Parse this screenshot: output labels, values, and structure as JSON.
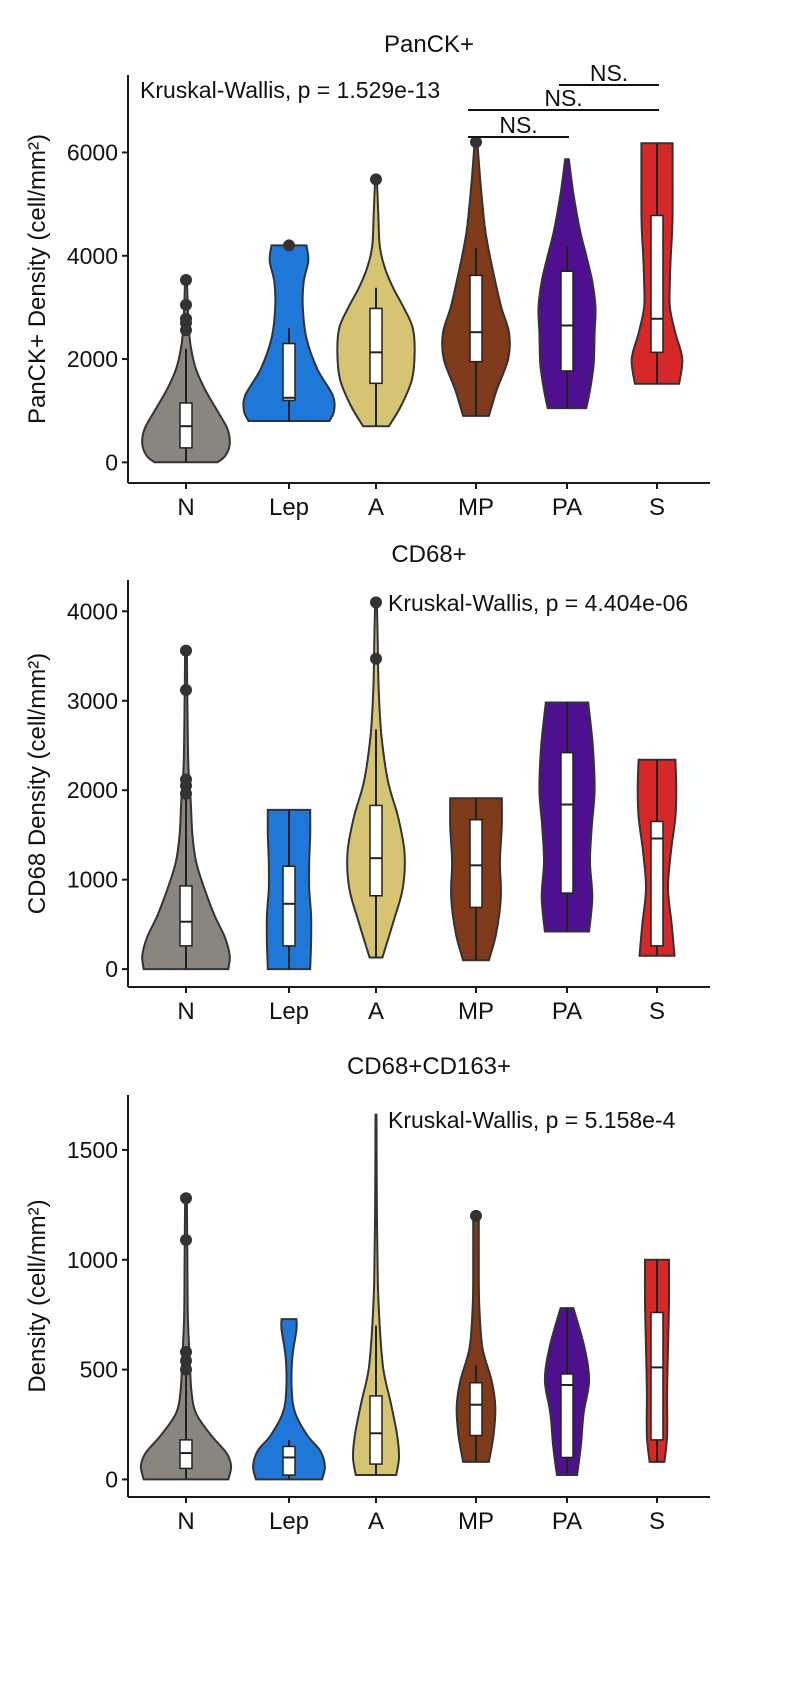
{
  "chart_data": [
    {
      "type": "violin",
      "title": "PanCK+",
      "ylabel": "PanCK+ Density (cell/mm²)",
      "ylim": [
        -400,
        7500
      ],
      "yticks": [
        0,
        2000,
        4000,
        6000
      ],
      "annotation": "Kruskal-Wallis, p = 1.529e-13",
      "annotation_position": "top-left",
      "categories": [
        "N",
        "Lep",
        "A",
        "MP",
        "PA",
        "S"
      ],
      "colors": [
        "#8b8580",
        "#1f78d8",
        "#d4c474",
        "#7f3a1a",
        "#4f1090",
        "#d62828"
      ],
      "series": [
        {
          "category": "N",
          "min": 0,
          "max": 3550,
          "q1": 280,
          "median": 700,
          "q3": 1150,
          "whisker_low": 0,
          "whisker_high": 2200,
          "outliers": [
            2560,
            2700,
            2780,
            3050,
            3530
          ],
          "profile": [
            [
              0,
              0.68
            ],
            [
              120,
              0.85
            ],
            [
              350,
              0.95
            ],
            [
              650,
              0.9
            ],
            [
              1000,
              0.68
            ],
            [
              1400,
              0.42
            ],
            [
              1800,
              0.22
            ],
            [
              2200,
              0.11
            ],
            [
              2600,
              0.06
            ],
            [
              3000,
              0.04
            ],
            [
              3550,
              0.02
            ]
          ]
        },
        {
          "category": "Lep",
          "min": 800,
          "max": 4200,
          "q1": 1200,
          "median": 1250,
          "q3": 2300,
          "whisker_low": 800,
          "whisker_high": 2600,
          "outliers": [
            4200
          ],
          "profile": [
            [
              800,
              0.88
            ],
            [
              1000,
              0.98
            ],
            [
              1300,
              0.95
            ],
            [
              1800,
              0.62
            ],
            [
              2400,
              0.38
            ],
            [
              3000,
              0.3
            ],
            [
              3500,
              0.32
            ],
            [
              3900,
              0.42
            ],
            [
              4200,
              0.38
            ]
          ]
        },
        {
          "category": "A",
          "min": 700,
          "max": 5480,
          "q1": 1530,
          "median": 2130,
          "q3": 2980,
          "whisker_low": 700,
          "whisker_high": 3380,
          "outliers": [
            5480
          ],
          "profile": [
            [
              700,
              0.28
            ],
            [
              1100,
              0.55
            ],
            [
              1600,
              0.78
            ],
            [
              2100,
              0.84
            ],
            [
              2600,
              0.8
            ],
            [
              3000,
              0.6
            ],
            [
              3400,
              0.36
            ],
            [
              3800,
              0.18
            ],
            [
              4200,
              0.08
            ],
            [
              4800,
              0.05
            ],
            [
              5480,
              0.02
            ]
          ]
        },
        {
          "category": "MP",
          "min": 900,
          "max": 6200,
          "q1": 1950,
          "median": 2520,
          "q3": 3620,
          "whisker_low": 900,
          "whisker_high": 4150,
          "outliers": [
            6200
          ],
          "profile": [
            [
              900,
              0.28
            ],
            [
              1400,
              0.45
            ],
            [
              2000,
              0.7
            ],
            [
              2500,
              0.72
            ],
            [
              3000,
              0.55
            ],
            [
              3500,
              0.42
            ],
            [
              4000,
              0.3
            ],
            [
              4500,
              0.2
            ],
            [
              5000,
              0.14
            ],
            [
              5600,
              0.08
            ],
            [
              6200,
              0.03
            ]
          ]
        },
        {
          "category": "PA",
          "min": 1050,
          "max": 5870,
          "q1": 1770,
          "median": 2650,
          "q3": 3700,
          "whisker_low": 1050,
          "whisker_high": 4200,
          "outliers": [],
          "profile": [
            [
              1050,
              0.42
            ],
            [
              1400,
              0.5
            ],
            [
              1900,
              0.58
            ],
            [
              2500,
              0.6
            ],
            [
              3000,
              0.62
            ],
            [
              3500,
              0.55
            ],
            [
              4000,
              0.42
            ],
            [
              4500,
              0.28
            ],
            [
              5200,
              0.14
            ],
            [
              5870,
              0.04
            ]
          ]
        },
        {
          "category": "S",
          "min": 1520,
          "max": 6180,
          "q1": 2130,
          "median": 2780,
          "q3": 4780,
          "whisker_low": 1520,
          "whisker_high": 6180,
          "outliers": [],
          "profile": [
            [
              1520,
              0.48
            ],
            [
              2000,
              0.55
            ],
            [
              2500,
              0.4
            ],
            [
              3000,
              0.28
            ],
            [
              3500,
              0.28
            ],
            [
              4000,
              0.3
            ],
            [
              4500,
              0.33
            ],
            [
              5000,
              0.34
            ],
            [
              5500,
              0.34
            ],
            [
              6180,
              0.34
            ]
          ]
        }
      ],
      "comparisons": [
        {
          "from": "MP",
          "to": "PA",
          "label": "NS.",
          "level": 0
        },
        {
          "from": "MP",
          "to": "S",
          "label": "NS.",
          "level": 1
        },
        {
          "from": "PA",
          "to": "S",
          "label": "NS.",
          "level": 2
        }
      ]
    },
    {
      "type": "violin",
      "title": "CD68+",
      "ylabel": "CD68 Density (cell/mm²)",
      "ylim": [
        -200,
        4350
      ],
      "yticks": [
        0,
        1000,
        2000,
        3000,
        4000
      ],
      "annotation": "Kruskal-Wallis, p = 4.404e-06",
      "annotation_position": "top-right",
      "categories": [
        "N",
        "Lep",
        "A",
        "MP",
        "PA",
        "S"
      ],
      "colors": [
        "#8b8580",
        "#1f78d8",
        "#d4c474",
        "#7f3a1a",
        "#4f1090",
        "#d62828"
      ],
      "series": [
        {
          "category": "N",
          "min": 0,
          "max": 3560,
          "q1": 260,
          "median": 530,
          "q3": 930,
          "whisker_low": 0,
          "whisker_high": 1900,
          "outliers": [
            1960,
            2050,
            2120,
            3120,
            3560
          ],
          "profile": [
            [
              0,
              0.92
            ],
            [
              150,
              0.95
            ],
            [
              350,
              0.85
            ],
            [
              600,
              0.62
            ],
            [
              900,
              0.4
            ],
            [
              1200,
              0.22
            ],
            [
              1500,
              0.14
            ],
            [
              1900,
              0.1
            ],
            [
              2300,
              0.05
            ],
            [
              3000,
              0.03
            ],
            [
              3560,
              0.02
            ]
          ]
        },
        {
          "category": "Lep",
          "min": 0,
          "max": 1780,
          "q1": 260,
          "median": 730,
          "q3": 1150,
          "whisker_low": 0,
          "whisker_high": 1780,
          "outliers": [],
          "profile": [
            [
              0,
              0.46
            ],
            [
              300,
              0.48
            ],
            [
              600,
              0.48
            ],
            [
              900,
              0.44
            ],
            [
              1200,
              0.44
            ],
            [
              1500,
              0.46
            ],
            [
              1780,
              0.46
            ]
          ]
        },
        {
          "category": "A",
          "min": 130,
          "max": 4100,
          "q1": 820,
          "median": 1240,
          "q3": 1830,
          "whisker_low": 130,
          "whisker_high": 2680,
          "outliers": [
            3470,
            4100
          ],
          "profile": [
            [
              130,
              0.14
            ],
            [
              500,
              0.36
            ],
            [
              900,
              0.58
            ],
            [
              1300,
              0.62
            ],
            [
              1700,
              0.48
            ],
            [
              2100,
              0.26
            ],
            [
              2600,
              0.12
            ],
            [
              3100,
              0.06
            ],
            [
              3600,
              0.04
            ],
            [
              4100,
              0.02
            ]
          ]
        },
        {
          "category": "MP",
          "min": 100,
          "max": 1910,
          "q1": 690,
          "median": 1160,
          "q3": 1670,
          "whisker_low": 100,
          "whisker_high": 1910,
          "outliers": [],
          "profile": [
            [
              100,
              0.28
            ],
            [
              400,
              0.44
            ],
            [
              800,
              0.54
            ],
            [
              1200,
              0.52
            ],
            [
              1600,
              0.56
            ],
            [
              1910,
              0.56
            ]
          ]
        },
        {
          "category": "PA",
          "min": 420,
          "max": 2980,
          "q1": 850,
          "median": 1840,
          "q3": 2420,
          "whisker_low": 420,
          "whisker_high": 2980,
          "outliers": [],
          "profile": [
            [
              420,
              0.48
            ],
            [
              800,
              0.55
            ],
            [
              1200,
              0.5
            ],
            [
              1600,
              0.54
            ],
            [
              2000,
              0.6
            ],
            [
              2500,
              0.56
            ],
            [
              2980,
              0.46
            ]
          ]
        },
        {
          "category": "S",
          "min": 150,
          "max": 2340,
          "q1": 260,
          "median": 1460,
          "q3": 1650,
          "whisker_low": 150,
          "whisker_high": 2340,
          "outliers": [],
          "profile": [
            [
              150,
              0.38
            ],
            [
              500,
              0.32
            ],
            [
              900,
              0.24
            ],
            [
              1300,
              0.3
            ],
            [
              1700,
              0.4
            ],
            [
              2000,
              0.42
            ],
            [
              2340,
              0.4
            ]
          ]
        }
      ]
    },
    {
      "type": "violin",
      "title": "CD68+CD163+",
      "ylabel": "Density (cell/mm²)",
      "ylim": [
        -80,
        1750
      ],
      "yticks": [
        0,
        500,
        1000,
        1500
      ],
      "annotation": "Kruskal-Wallis, p = 5.158e-4",
      "annotation_position": "top-right",
      "categories": [
        "N",
        "Lep",
        "A",
        "MP",
        "PA",
        "S"
      ],
      "colors": [
        "#8b8580",
        "#1f78d8",
        "#d4c474",
        "#7f3a1a",
        "#4f1090",
        "#d62828"
      ],
      "series": [
        {
          "category": "N",
          "min": 0,
          "max": 1280,
          "q1": 50,
          "median": 120,
          "q3": 180,
          "whisker_low": 0,
          "whisker_high": 480,
          "outliers": [
            500,
            540,
            580,
            1090,
            1280
          ],
          "profile": [
            [
              0,
              0.92
            ],
            [
              60,
              0.98
            ],
            [
              120,
              0.88
            ],
            [
              200,
              0.55
            ],
            [
              300,
              0.22
            ],
            [
              400,
              0.12
            ],
            [
              550,
              0.08
            ],
            [
              750,
              0.04
            ],
            [
              1000,
              0.03
            ],
            [
              1280,
              0.02
            ]
          ]
        },
        {
          "category": "Lep",
          "min": 0,
          "max": 730,
          "q1": 20,
          "median": 100,
          "q3": 150,
          "whisker_low": 0,
          "whisker_high": 180,
          "outliers": [],
          "profile": [
            [
              0,
              0.72
            ],
            [
              60,
              0.78
            ],
            [
              130,
              0.68
            ],
            [
              200,
              0.4
            ],
            [
              300,
              0.14
            ],
            [
              400,
              0.06
            ],
            [
              550,
              0.07
            ],
            [
              680,
              0.16
            ],
            [
              730,
              0.16
            ]
          ]
        },
        {
          "category": "A",
          "min": 20,
          "max": 1660,
          "q1": 70,
          "median": 210,
          "q3": 380,
          "whisker_low": 20,
          "whisker_high": 700,
          "outliers": [],
          "profile": [
            [
              20,
              0.44
            ],
            [
              100,
              0.5
            ],
            [
              200,
              0.46
            ],
            [
              350,
              0.32
            ],
            [
              500,
              0.16
            ],
            [
              700,
              0.08
            ],
            [
              900,
              0.04
            ],
            [
              1200,
              0.02
            ],
            [
              1660,
              0.01
            ]
          ]
        },
        {
          "category": "MP",
          "min": 80,
          "max": 1200,
          "q1": 200,
          "median": 340,
          "q3": 440,
          "whisker_low": 80,
          "whisker_high": 520,
          "outliers": [
            1200
          ],
          "profile": [
            [
              80,
              0.28
            ],
            [
              200,
              0.38
            ],
            [
              330,
              0.42
            ],
            [
              450,
              0.34
            ],
            [
              600,
              0.14
            ],
            [
              800,
              0.07
            ],
            [
              1000,
              0.06
            ],
            [
              1200,
              0.06
            ]
          ]
        },
        {
          "category": "PA",
          "min": 20,
          "max": 780,
          "q1": 100,
          "median": 430,
          "q3": 480,
          "whisker_low": 20,
          "whisker_high": 780,
          "outliers": [],
          "profile": [
            [
              20,
              0.22
            ],
            [
              150,
              0.3
            ],
            [
              300,
              0.36
            ],
            [
              450,
              0.48
            ],
            [
              600,
              0.38
            ],
            [
              780,
              0.14
            ]
          ]
        },
        {
          "category": "S",
          "min": 80,
          "max": 1000,
          "q1": 180,
          "median": 510,
          "q3": 760,
          "whisker_low": 80,
          "whisker_high": 1000,
          "outliers": [],
          "profile": [
            [
              80,
              0.16
            ],
            [
              200,
              0.22
            ],
            [
              400,
              0.22
            ],
            [
              600,
              0.24
            ],
            [
              800,
              0.26
            ],
            [
              1000,
              0.26
            ]
          ]
        }
      ]
    }
  ]
}
